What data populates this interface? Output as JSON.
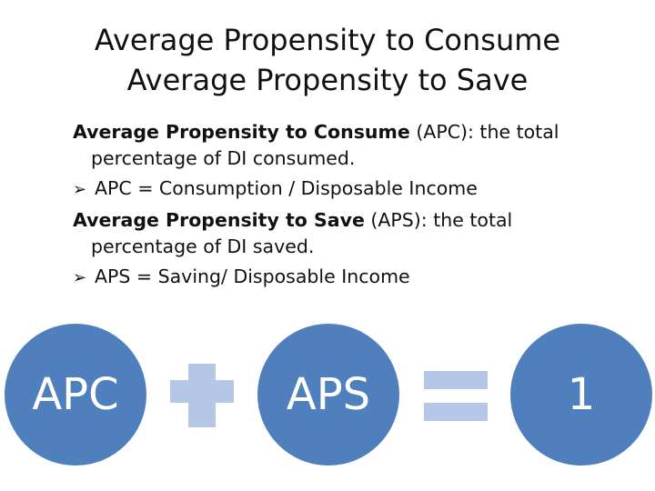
{
  "title": {
    "line1": "Average Propensity to Consume",
    "line2": "Average Propensity to Save"
  },
  "content": {
    "apc_term": "Average Propensity to Consume",
    "apc_def_start": " (APC): the total",
    "apc_def_cont": "percentage of DI consumed.",
    "apc_formula": "APC = Consumption / Disposable Income",
    "aps_term": "Average Propensity to Save",
    "aps_def_start": " (APS): the total",
    "aps_def_cont": "percentage of DI saved.",
    "aps_formula": "APS = Saving/ Disposable Income",
    "bullet_icon": "arrow-right-icon"
  },
  "equation": {
    "circle1": "APC",
    "operator1": "plus-icon",
    "circle2": "APS",
    "operator2": "equals-icon",
    "circle3": "1"
  },
  "colors": {
    "circle_fill": "#4f80bd",
    "operator_fill": "#b4c7e7"
  }
}
